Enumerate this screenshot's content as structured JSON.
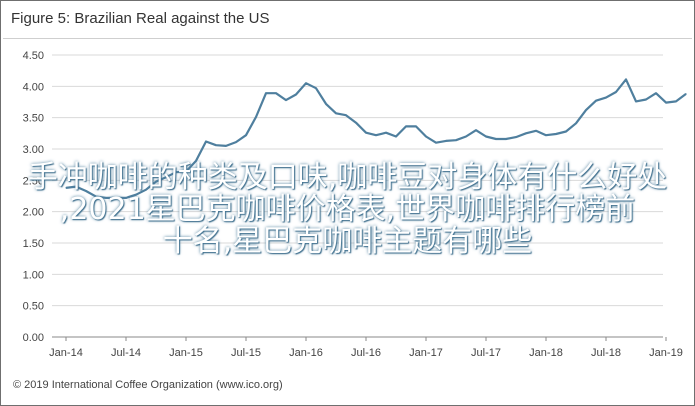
{
  "title": "Figure 5: Brazilian Real against the US",
  "overlay_lines": [
    "手冲咖啡的种类及口味,咖啡豆对身体有什么好处",
    ",2021星巴克咖啡价格表,世界咖啡排行榜前",
    "十名,星巴克咖啡主题有哪些"
  ],
  "footer": "© 2019 International Coffee Organization (www.ico.org)",
  "chart_data": {
    "type": "line",
    "title": "Figure 5: Brazilian Real against the US",
    "xlabel": "",
    "ylabel": "",
    "ylim": [
      0,
      4.5
    ],
    "y_ticks": [
      "0.00",
      "0.50",
      "1.00",
      "1.50",
      "2.00",
      "2.50",
      "3.00",
      "3.50",
      "4.00",
      "4.50"
    ],
    "x_tick_labels": [
      "Jan-14",
      "Jul-14",
      "Jan-15",
      "Jul-15",
      "Jan-16",
      "Jul-16",
      "Jan-17",
      "Jul-17",
      "Jan-18",
      "Jul-18",
      "Jan-19"
    ],
    "grid": "horizontal",
    "line_color": "#4f7f9e",
    "series": [
      {
        "name": "",
        "x": [
          "2014-01",
          "2014-02",
          "2014-03",
          "2014-04",
          "2014-05",
          "2014-06",
          "2014-07",
          "2014-08",
          "2014-09",
          "2014-10",
          "2014-11",
          "2014-12",
          "2015-01",
          "2015-02",
          "2015-03",
          "2015-04",
          "2015-05",
          "2015-06",
          "2015-07",
          "2015-08",
          "2015-09",
          "2015-10",
          "2015-11",
          "2015-12",
          "2016-01",
          "2016-02",
          "2016-03",
          "2016-04",
          "2016-05",
          "2016-06",
          "2016-07",
          "2016-08",
          "2016-09",
          "2016-10",
          "2016-11",
          "2016-12",
          "2017-01",
          "2017-02",
          "2017-03",
          "2017-04",
          "2017-05",
          "2017-06",
          "2017-07",
          "2017-08",
          "2017-09",
          "2017-10",
          "2017-11",
          "2017-12",
          "2018-01",
          "2018-02",
          "2018-03",
          "2018-04",
          "2018-05",
          "2018-06",
          "2018-07",
          "2018-08",
          "2018-09",
          "2018-10",
          "2018-11",
          "2018-12",
          "2019-01",
          "2019-02",
          "2019-03"
        ],
        "values": [
          2.38,
          2.4,
          2.33,
          2.24,
          2.22,
          2.22,
          2.22,
          2.27,
          2.35,
          2.48,
          2.55,
          2.63,
          2.64,
          2.81,
          3.12,
          3.06,
          3.05,
          3.11,
          3.22,
          3.51,
          3.89,
          3.89,
          3.78,
          3.87,
          4.05,
          3.97,
          3.72,
          3.57,
          3.54,
          3.42,
          3.26,
          3.22,
          3.26,
          3.2,
          3.36,
          3.36,
          3.2,
          3.1,
          3.13,
          3.14,
          3.2,
          3.3,
          3.2,
          3.16,
          3.16,
          3.19,
          3.25,
          3.29,
          3.22,
          3.24,
          3.28,
          3.41,
          3.62,
          3.77,
          3.82,
          3.91,
          4.11,
          3.76,
          3.79,
          3.89,
          3.74,
          3.76,
          3.88
        ]
      }
    ]
  }
}
